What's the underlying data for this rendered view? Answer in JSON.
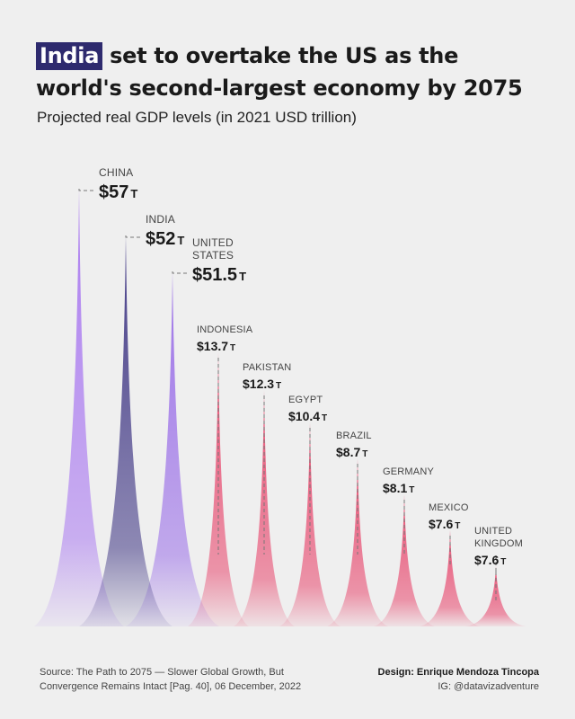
{
  "title": {
    "highlight": "India",
    "rest": " set to overtake the US as the world's second-largest economy by 2075"
  },
  "subtitle": "Projected real GDP levels (in 2021 USD trillion)",
  "chart_data": {
    "type": "area",
    "unit_suffix": "T",
    "series": [
      {
        "name": "CHINA",
        "value": 57,
        "label": "$57",
        "color": "#a978f0"
      },
      {
        "name": "INDIA",
        "value": 52,
        "label": "$52",
        "color": "#3d3483"
      },
      {
        "name": "UNITED STATES",
        "value": 51.5,
        "label": "$51.5",
        "color": "#9a6ee8"
      },
      {
        "name": "INDONESIA",
        "value": 13.7,
        "label": "$13.7",
        "color": "#e8486e"
      },
      {
        "name": "PAKISTAN",
        "value": 12.3,
        "label": "$12.3",
        "color": "#e8486e"
      },
      {
        "name": "EGYPT",
        "value": 10.4,
        "label": "$10.4",
        "color": "#e8486e"
      },
      {
        "name": "BRAZIL",
        "value": 8.7,
        "label": "$8.7",
        "color": "#e8486e"
      },
      {
        "name": "GERMANY",
        "value": 8.1,
        "label": "$8.1",
        "color": "#e8486e"
      },
      {
        "name": "MEXICO",
        "value": 7.6,
        "label": "$7.6",
        "color": "#e8486e"
      },
      {
        "name": "UNITED KINGDOM",
        "value": 7.6,
        "label": "$7.6",
        "color": "#e8486e"
      }
    ]
  },
  "footer": {
    "source_line1": "Source: The Path to 2075 — Slower Global Growth, But",
    "source_line2": "Convergence Remains Intact [Pag. 40], 06 December, 2022",
    "design": "Design: Enrique Mendoza Tincopa",
    "ig": "IG: @datavizadventure"
  }
}
